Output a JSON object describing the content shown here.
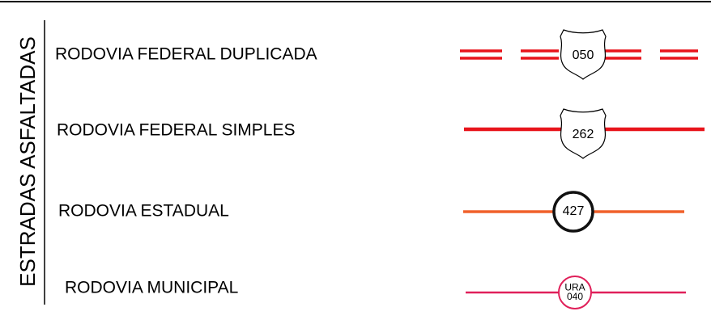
{
  "section_label": "ESTRADAS ASFALTADAS",
  "items": [
    {
      "label": "RODOVIA FEDERAL DUPLICADA",
      "shield": [
        "050"
      ]
    },
    {
      "label": "RODOVIA FEDERAL SIMPLES",
      "shield": [
        "262"
      ]
    },
    {
      "label": "RODOVIA ESTADUAL",
      "shield": [
        "427"
      ]
    },
    {
      "label": "RODOVIA MUNICIPAL",
      "shield": [
        "URA",
        "040"
      ]
    }
  ]
}
